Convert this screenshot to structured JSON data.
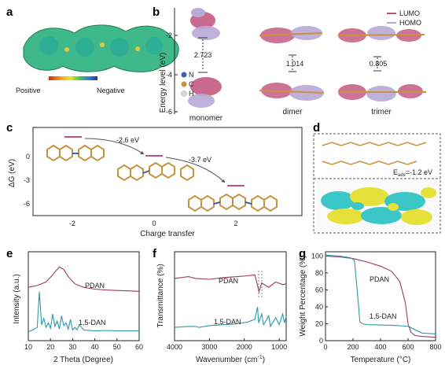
{
  "panels": {
    "a": {
      "label": "a",
      "scale_left": "Positive",
      "scale_right": "Negative"
    },
    "b": {
      "label": "b",
      "ylabel": "Energy level (eV)",
      "yticks": [
        "-2",
        "-4",
        "-6"
      ],
      "structures": [
        "monomer",
        "dimer",
        "trimer"
      ],
      "gaps": [
        "2.723",
        "1.014",
        "0.805"
      ],
      "atoms": [
        "N",
        "C",
        "H"
      ],
      "legend": [
        "LUMO",
        "HOMO"
      ],
      "colors": {
        "N": "#3a5fb0",
        "C": "#c8913e",
        "H": "#d8d8d8",
        "LUMO": "#c0507a",
        "HOMO": "#b9a9d6"
      }
    },
    "c": {
      "label": "c",
      "ylabel": "ΔG (eV)",
      "xlabel": "Charge transfer",
      "yticks": [
        "0",
        "-3",
        "-6"
      ],
      "xticks": [
        "-2",
        "0",
        "2"
      ],
      "steps": [
        "-2.6 eV",
        "-3.7 eV"
      ]
    },
    "d": {
      "label": "d",
      "eads": "E",
      "eads_sub": "ads",
      "eads_val": "=-1.2 eV"
    },
    "e": {
      "label": "e",
      "xlabel": "2 Theta (Degree)",
      "ylabel": "Intensity (a.u.)",
      "xticks": [
        "10",
        "20",
        "30",
        "40",
        "50",
        "60"
      ],
      "series": [
        "PDAN",
        "1,5-DAN"
      ]
    },
    "f": {
      "label": "f",
      "xlabel": "Wavenumber (cm",
      "xlabel_sup": "-1",
      "xlabel_end": ")",
      "ylabel": "Transmittance (%)",
      "xticks": [
        "4000",
        "3000",
        "2000",
        "1000"
      ],
      "series": [
        "PDAN",
        "1,5-DAN"
      ]
    },
    "g": {
      "label": "g",
      "xlabel": "Temperature (°C)",
      "ylabel": "Weight Percentage (%)",
      "yticks": [
        "100",
        "80",
        "60",
        "40",
        "20",
        "0"
      ],
      "xticks": [
        "0",
        "200",
        "400",
        "600",
        "800"
      ],
      "series": [
        "PDAN",
        "1,5-DAN"
      ]
    }
  },
  "chart_data": [
    {
      "type": "line",
      "title": "",
      "xlabel": "2 Theta (Degree)",
      "ylabel": "Intensity (a.u.)",
      "xlim": [
        10,
        60
      ],
      "series": [
        {
          "name": "PDAN",
          "x": [
            10,
            14,
            18,
            21,
            24,
            26,
            28,
            31,
            35,
            40,
            45,
            50,
            55,
            60
          ],
          "values": [
            0.6,
            0.62,
            0.66,
            0.74,
            0.83,
            0.8,
            0.72,
            0.64,
            0.6,
            0.58,
            0.57,
            0.565,
            0.56,
            0.555
          ]
        },
        {
          "name": "1,5-DAN",
          "x": [
            10,
            12,
            14,
            15,
            16,
            17,
            18,
            19,
            20,
            21,
            22,
            23,
            24,
            25,
            26,
            27,
            28,
            29,
            30,
            31,
            32,
            33,
            35,
            40,
            45,
            50,
            55,
            60
          ],
          "values": [
            0.1,
            0.12,
            0.15,
            0.55,
            0.18,
            0.25,
            0.15,
            0.2,
            0.14,
            0.3,
            0.16,
            0.22,
            0.13,
            0.28,
            0.17,
            0.2,
            0.13,
            0.24,
            0.12,
            0.15,
            0.12,
            0.18,
            0.12,
            0.11,
            0.115,
            0.11,
            0.11,
            0.11
          ]
        }
      ]
    },
    {
      "type": "line",
      "title": "",
      "xlabel": "Wavenumber (cm-1)",
      "ylabel": "Transmittance (%)",
      "xlim": [
        4000,
        800
      ],
      "series": [
        {
          "name": "PDAN",
          "x": [
            4000,
            3600,
            3400,
            3000,
            2600,
            2200,
            1900,
            1700,
            1620,
            1580,
            1500,
            1300,
            1100,
            900,
            800
          ],
          "values": [
            0.7,
            0.72,
            0.7,
            0.69,
            0.71,
            0.72,
            0.73,
            0.74,
            0.62,
            0.55,
            0.65,
            0.6,
            0.66,
            0.63,
            0.64
          ]
        },
        {
          "name": "1,5-DAN",
          "x": [
            4000,
            3600,
            3400,
            3300,
            3000,
            2600,
            2200,
            1900,
            1700,
            1620,
            1590,
            1500,
            1450,
            1300,
            1250,
            1100,
            1000,
            900,
            850,
            800
          ],
          "values": [
            0.15,
            0.16,
            0.16,
            0.15,
            0.17,
            0.18,
            0.19,
            0.21,
            0.24,
            0.38,
            0.2,
            0.3,
            0.18,
            0.28,
            0.16,
            0.26,
            0.18,
            0.3,
            0.2,
            0.27
          ]
        }
      ]
    },
    {
      "type": "line",
      "title": "",
      "xlabel": "Temperature (°C)",
      "ylabel": "Weight Percentage (%)",
      "xlim": [
        0,
        800
      ],
      "ylim": [
        0,
        105
      ],
      "series": [
        {
          "name": "PDAN",
          "x": [
            0,
            100,
            200,
            250,
            300,
            400,
            480,
            540,
            580,
            600,
            620,
            650,
            700,
            800
          ],
          "values": [
            100,
            99,
            97,
            95,
            93,
            88,
            82,
            70,
            45,
            20,
            10,
            6,
            5,
            4
          ]
        },
        {
          "name": "1,5-DAN",
          "x": [
            0,
            100,
            180,
            210,
            230,
            250,
            270,
            300,
            400,
            500,
            600,
            700,
            800
          ],
          "values": [
            101,
            100,
            98,
            95,
            60,
            22,
            20,
            19,
            18.5,
            18,
            17,
            9,
            8
          ]
        }
      ]
    }
  ]
}
